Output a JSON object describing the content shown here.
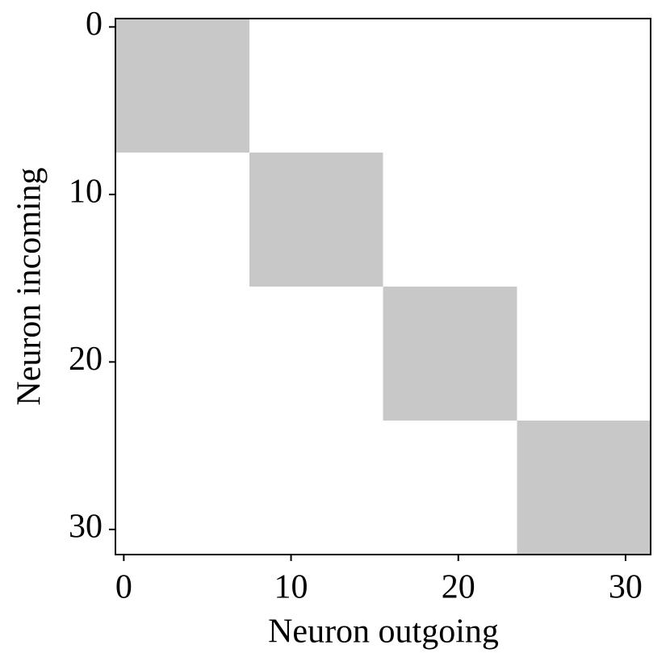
{
  "chart_data": {
    "type": "heatmap",
    "xlabel": "Neuron outgoing",
    "ylabel": "Neuron incoming",
    "xlim": [
      -0.5,
      31.5
    ],
    "ylim": [
      31.5,
      -0.5
    ],
    "xticks": [
      0,
      10,
      20,
      30
    ],
    "yticks": [
      0,
      10,
      20,
      30
    ],
    "cmap": [
      "#ffffff",
      "#c8c8c8"
    ],
    "z": [
      [
        1,
        1,
        1,
        1,
        1,
        1,
        1,
        1,
        0,
        0,
        0,
        0,
        0,
        0,
        0,
        0,
        0,
        0,
        0,
        0,
        0,
        0,
        0,
        0,
        0,
        0,
        0,
        0,
        0,
        0,
        0,
        0
      ],
      [
        1,
        1,
        1,
        1,
        1,
        1,
        1,
        1,
        0,
        0,
        0,
        0,
        0,
        0,
        0,
        0,
        0,
        0,
        0,
        0,
        0,
        0,
        0,
        0,
        0,
        0,
        0,
        0,
        0,
        0,
        0,
        0
      ],
      [
        1,
        1,
        1,
        1,
        1,
        1,
        1,
        1,
        0,
        0,
        0,
        0,
        0,
        0,
        0,
        0,
        0,
        0,
        0,
        0,
        0,
        0,
        0,
        0,
        0,
        0,
        0,
        0,
        0,
        0,
        0,
        0
      ],
      [
        1,
        1,
        1,
        1,
        1,
        1,
        1,
        1,
        0,
        0,
        0,
        0,
        0,
        0,
        0,
        0,
        0,
        0,
        0,
        0,
        0,
        0,
        0,
        0,
        0,
        0,
        0,
        0,
        0,
        0,
        0,
        0
      ],
      [
        1,
        1,
        1,
        1,
        1,
        1,
        1,
        1,
        0,
        0,
        0,
        0,
        0,
        0,
        0,
        0,
        0,
        0,
        0,
        0,
        0,
        0,
        0,
        0,
        0,
        0,
        0,
        0,
        0,
        0,
        0,
        0
      ],
      [
        1,
        1,
        1,
        1,
        1,
        1,
        1,
        1,
        0,
        0,
        0,
        0,
        0,
        0,
        0,
        0,
        0,
        0,
        0,
        0,
        0,
        0,
        0,
        0,
        0,
        0,
        0,
        0,
        0,
        0,
        0,
        0
      ],
      [
        1,
        1,
        1,
        1,
        1,
        1,
        1,
        1,
        0,
        0,
        0,
        0,
        0,
        0,
        0,
        0,
        0,
        0,
        0,
        0,
        0,
        0,
        0,
        0,
        0,
        0,
        0,
        0,
        0,
        0,
        0,
        0
      ],
      [
        1,
        1,
        1,
        1,
        1,
        1,
        1,
        1,
        0,
        0,
        0,
        0,
        0,
        0,
        0,
        0,
        0,
        0,
        0,
        0,
        0,
        0,
        0,
        0,
        0,
        0,
        0,
        0,
        0,
        0,
        0,
        0
      ],
      [
        0,
        0,
        0,
        0,
        0,
        0,
        0,
        0,
        1,
        1,
        1,
        1,
        1,
        1,
        1,
        1,
        0,
        0,
        0,
        0,
        0,
        0,
        0,
        0,
        0,
        0,
        0,
        0,
        0,
        0,
        0,
        0
      ],
      [
        0,
        0,
        0,
        0,
        0,
        0,
        0,
        0,
        1,
        1,
        1,
        1,
        1,
        1,
        1,
        1,
        0,
        0,
        0,
        0,
        0,
        0,
        0,
        0,
        0,
        0,
        0,
        0,
        0,
        0,
        0,
        0
      ],
      [
        0,
        0,
        0,
        0,
        0,
        0,
        0,
        0,
        1,
        1,
        1,
        1,
        1,
        1,
        1,
        1,
        0,
        0,
        0,
        0,
        0,
        0,
        0,
        0,
        0,
        0,
        0,
        0,
        0,
        0,
        0,
        0
      ],
      [
        0,
        0,
        0,
        0,
        0,
        0,
        0,
        0,
        1,
        1,
        1,
        1,
        1,
        1,
        1,
        1,
        0,
        0,
        0,
        0,
        0,
        0,
        0,
        0,
        0,
        0,
        0,
        0,
        0,
        0,
        0,
        0
      ],
      [
        0,
        0,
        0,
        0,
        0,
        0,
        0,
        0,
        1,
        1,
        1,
        1,
        1,
        1,
        1,
        1,
        0,
        0,
        0,
        0,
        0,
        0,
        0,
        0,
        0,
        0,
        0,
        0,
        0,
        0,
        0,
        0
      ],
      [
        0,
        0,
        0,
        0,
        0,
        0,
        0,
        0,
        1,
        1,
        1,
        1,
        1,
        1,
        1,
        1,
        0,
        0,
        0,
        0,
        0,
        0,
        0,
        0,
        0,
        0,
        0,
        0,
        0,
        0,
        0,
        0
      ],
      [
        0,
        0,
        0,
        0,
        0,
        0,
        0,
        0,
        1,
        1,
        1,
        1,
        1,
        1,
        1,
        1,
        0,
        0,
        0,
        0,
        0,
        0,
        0,
        0,
        0,
        0,
        0,
        0,
        0,
        0,
        0,
        0
      ],
      [
        0,
        0,
        0,
        0,
        0,
        0,
        0,
        0,
        1,
        1,
        1,
        1,
        1,
        1,
        1,
        1,
        0,
        0,
        0,
        0,
        0,
        0,
        0,
        0,
        0,
        0,
        0,
        0,
        0,
        0,
        0,
        0
      ],
      [
        0,
        0,
        0,
        0,
        0,
        0,
        0,
        0,
        0,
        0,
        0,
        0,
        0,
        0,
        0,
        0,
        1,
        1,
        1,
        1,
        1,
        1,
        1,
        1,
        0,
        0,
        0,
        0,
        0,
        0,
        0,
        0
      ],
      [
        0,
        0,
        0,
        0,
        0,
        0,
        0,
        0,
        0,
        0,
        0,
        0,
        0,
        0,
        0,
        0,
        1,
        1,
        1,
        1,
        1,
        1,
        1,
        1,
        0,
        0,
        0,
        0,
        0,
        0,
        0,
        0
      ],
      [
        0,
        0,
        0,
        0,
        0,
        0,
        0,
        0,
        0,
        0,
        0,
        0,
        0,
        0,
        0,
        0,
        1,
        1,
        1,
        1,
        1,
        1,
        1,
        1,
        0,
        0,
        0,
        0,
        0,
        0,
        0,
        0
      ],
      [
        0,
        0,
        0,
        0,
        0,
        0,
        0,
        0,
        0,
        0,
        0,
        0,
        0,
        0,
        0,
        0,
        1,
        1,
        1,
        1,
        1,
        1,
        1,
        1,
        0,
        0,
        0,
        0,
        0,
        0,
        0,
        0
      ],
      [
        0,
        0,
        0,
        0,
        0,
        0,
        0,
        0,
        0,
        0,
        0,
        0,
        0,
        0,
        0,
        0,
        1,
        1,
        1,
        1,
        1,
        1,
        1,
        1,
        0,
        0,
        0,
        0,
        0,
        0,
        0,
        0
      ],
      [
        0,
        0,
        0,
        0,
        0,
        0,
        0,
        0,
        0,
        0,
        0,
        0,
        0,
        0,
        0,
        0,
        1,
        1,
        1,
        1,
        1,
        1,
        1,
        1,
        0,
        0,
        0,
        0,
        0,
        0,
        0,
        0
      ],
      [
        0,
        0,
        0,
        0,
        0,
        0,
        0,
        0,
        0,
        0,
        0,
        0,
        0,
        0,
        0,
        0,
        1,
        1,
        1,
        1,
        1,
        1,
        1,
        1,
        0,
        0,
        0,
        0,
        0,
        0,
        0,
        0
      ],
      [
        0,
        0,
        0,
        0,
        0,
        0,
        0,
        0,
        0,
        0,
        0,
        0,
        0,
        0,
        0,
        0,
        1,
        1,
        1,
        1,
        1,
        1,
        1,
        1,
        0,
        0,
        0,
        0,
        0,
        0,
        0,
        0
      ],
      [
        0,
        0,
        0,
        0,
        0,
        0,
        0,
        0,
        0,
        0,
        0,
        0,
        0,
        0,
        0,
        0,
        0,
        0,
        0,
        0,
        0,
        0,
        0,
        0,
        1,
        1,
        1,
        1,
        1,
        1,
        1,
        1
      ],
      [
        0,
        0,
        0,
        0,
        0,
        0,
        0,
        0,
        0,
        0,
        0,
        0,
        0,
        0,
        0,
        0,
        0,
        0,
        0,
        0,
        0,
        0,
        0,
        0,
        1,
        1,
        1,
        1,
        1,
        1,
        1,
        1
      ],
      [
        0,
        0,
        0,
        0,
        0,
        0,
        0,
        0,
        0,
        0,
        0,
        0,
        0,
        0,
        0,
        0,
        0,
        0,
        0,
        0,
        0,
        0,
        0,
        0,
        1,
        1,
        1,
        1,
        1,
        1,
        1,
        1
      ],
      [
        0,
        0,
        0,
        0,
        0,
        0,
        0,
        0,
        0,
        0,
        0,
        0,
        0,
        0,
        0,
        0,
        0,
        0,
        0,
        0,
        0,
        0,
        0,
        0,
        1,
        1,
        1,
        1,
        1,
        1,
        1,
        1
      ],
      [
        0,
        0,
        0,
        0,
        0,
        0,
        0,
        0,
        0,
        0,
        0,
        0,
        0,
        0,
        0,
        0,
        0,
        0,
        0,
        0,
        0,
        0,
        0,
        0,
        1,
        1,
        1,
        1,
        1,
        1,
        1,
        1
      ],
      [
        0,
        0,
        0,
        0,
        0,
        0,
        0,
        0,
        0,
        0,
        0,
        0,
        0,
        0,
        0,
        0,
        0,
        0,
        0,
        0,
        0,
        0,
        0,
        0,
        1,
        1,
        1,
        1,
        1,
        1,
        1,
        1
      ],
      [
        0,
        0,
        0,
        0,
        0,
        0,
        0,
        0,
        0,
        0,
        0,
        0,
        0,
        0,
        0,
        0,
        0,
        0,
        0,
        0,
        0,
        0,
        0,
        0,
        1,
        1,
        1,
        1,
        1,
        1,
        1,
        1
      ],
      [
        0,
        0,
        0,
        0,
        0,
        0,
        0,
        0,
        0,
        0,
        0,
        0,
        0,
        0,
        0,
        0,
        0,
        0,
        0,
        0,
        0,
        0,
        0,
        0,
        1,
        1,
        1,
        1,
        1,
        1,
        1,
        1
      ]
    ]
  }
}
